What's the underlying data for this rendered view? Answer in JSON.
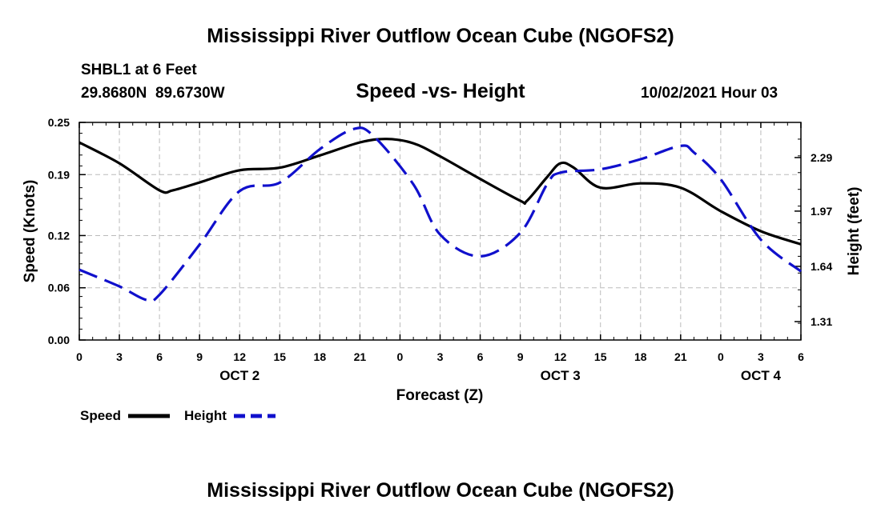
{
  "header": {
    "title_top": "Mississippi River Outflow Ocean Cube (NGOFS2)",
    "title_bottom": "Mississippi River Outflow Ocean Cube (NGOFS2)",
    "station": "SHBL1 at 6 Feet",
    "coords": "29.8680N  89.6730W",
    "datetime": "10/02/2021 Hour 03"
  },
  "chart_data": {
    "type": "line",
    "title": "Speed -vs- Height",
    "xlabel": "Forecast (Z)",
    "ylabel_left": "Speed (Knots)",
    "ylabel_right": "Height (feet)",
    "x_range_hours": [
      0,
      54
    ],
    "x_ticks": [
      {
        "h": 0,
        "label": "0"
      },
      {
        "h": 3,
        "label": "3"
      },
      {
        "h": 6,
        "label": "6"
      },
      {
        "h": 9,
        "label": "9"
      },
      {
        "h": 12,
        "label": "12"
      },
      {
        "h": 15,
        "label": "15"
      },
      {
        "h": 18,
        "label": "18"
      },
      {
        "h": 21,
        "label": "21"
      },
      {
        "h": 24,
        "label": "0"
      },
      {
        "h": 27,
        "label": "3"
      },
      {
        "h": 30,
        "label": "6"
      },
      {
        "h": 33,
        "label": "9"
      },
      {
        "h": 36,
        "label": "12"
      },
      {
        "h": 39,
        "label": "15"
      },
      {
        "h": 42,
        "label": "18"
      },
      {
        "h": 45,
        "label": "21"
      },
      {
        "h": 48,
        "label": "0"
      },
      {
        "h": 51,
        "label": "3"
      },
      {
        "h": 54,
        "label": "6"
      }
    ],
    "day_labels": [
      {
        "h": 12,
        "label": "OCT 2"
      },
      {
        "h": 36,
        "label": "OCT 3"
      },
      {
        "h": 51,
        "label": "OCT 4"
      }
    ],
    "left_axis": {
      "ylim": [
        0,
        0.25
      ],
      "ticks": [
        "0.00",
        "0.06",
        "0.12",
        "0.19",
        "0.25"
      ]
    },
    "right_axis": {
      "ylim": [
        1.2,
        2.5
      ],
      "ticks": [
        "1.31",
        "1.64",
        "1.97",
        "2.29"
      ]
    },
    "grid": true,
    "series": [
      {
        "name": "Speed",
        "axis": "left",
        "color": "#000000",
        "style": "solid",
        "x": [
          0,
          3,
          6,
          7,
          9,
          12,
          15,
          18,
          21,
          23,
          25,
          27,
          30,
          33,
          33.5,
          35,
          36,
          37,
          39,
          42,
          45,
          48,
          51,
          54
        ],
        "y": [
          0.227,
          0.203,
          0.172,
          0.172,
          0.181,
          0.195,
          0.198,
          0.212,
          0.227,
          0.231,
          0.226,
          0.211,
          0.185,
          0.16,
          0.16,
          0.187,
          0.203,
          0.198,
          0.175,
          0.18,
          0.175,
          0.148,
          0.125,
          0.11
        ]
      },
      {
        "name": "Height",
        "axis": "right",
        "color": "#1010cc",
        "style": "dashed",
        "x": [
          0,
          3,
          5,
          6,
          9,
          12,
          15,
          18,
          20.5,
          22,
          25,
          27,
          30,
          33,
          35,
          36,
          39,
          42,
          45,
          46,
          48,
          51,
          54
        ],
        "y": [
          1.62,
          1.52,
          1.44,
          1.47,
          1.77,
          2.09,
          2.14,
          2.34,
          2.46,
          2.42,
          2.13,
          1.83,
          1.7,
          1.84,
          2.13,
          2.2,
          2.22,
          2.28,
          2.36,
          2.32,
          2.16,
          1.8,
          1.61
        ]
      }
    ],
    "legend": {
      "position": "bottom-left",
      "items": [
        "Speed",
        "Height"
      ]
    }
  }
}
